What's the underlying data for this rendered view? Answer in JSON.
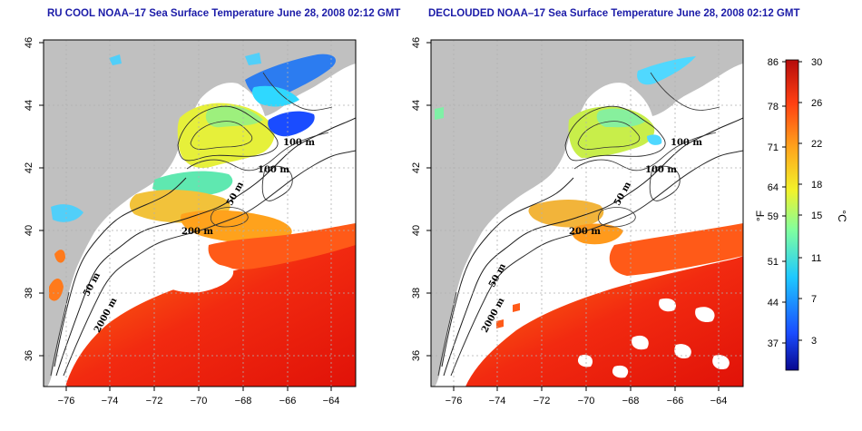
{
  "maps": [
    {
      "title": "RU COOL NOAA–17 Sea Surface Temperature June 28, 2008 02:12 GMT",
      "depth_labels": [
        "100 m",
        "100 m",
        "50 m",
        "200 m",
        "50 m",
        "2000 m"
      ]
    },
    {
      "title": "DECLOUDED NOAA–17 Sea Surface Temperature June 28, 2008 02:12 GMT",
      "depth_labels": [
        "100 m",
        "100 m",
        "50 m",
        "200 m",
        "50 m",
        "2000 m"
      ]
    }
  ],
  "x_ticks": [
    "−76",
    "−74",
    "−72",
    "−70",
    "−68",
    "−66",
    "−64"
  ],
  "y_ticks": [
    "36",
    "38",
    "40",
    "42",
    "44",
    "46"
  ],
  "colorbar": {
    "fahrenheit_ticks": [
      "86",
      "78",
      "71",
      "64",
      "59",
      "51",
      "44",
      "37"
    ],
    "celsius_ticks": [
      "30",
      "26",
      "22",
      "18",
      "15",
      "11",
      "7",
      "3"
    ],
    "fahrenheit_unit": "°F",
    "celsius_unit": "°C",
    "range_celsius": [
      0,
      30
    ],
    "colors": [
      "#08088f",
      "#1a4cff",
      "#1ec8ff",
      "#7fffa0",
      "#f2f22a",
      "#ffa31c",
      "#ff4012",
      "#b50c0c"
    ]
  },
  "colors": {
    "land": "#c0c0c0",
    "no_data": "#ffffff",
    "title": "#1c1ca8"
  }
}
